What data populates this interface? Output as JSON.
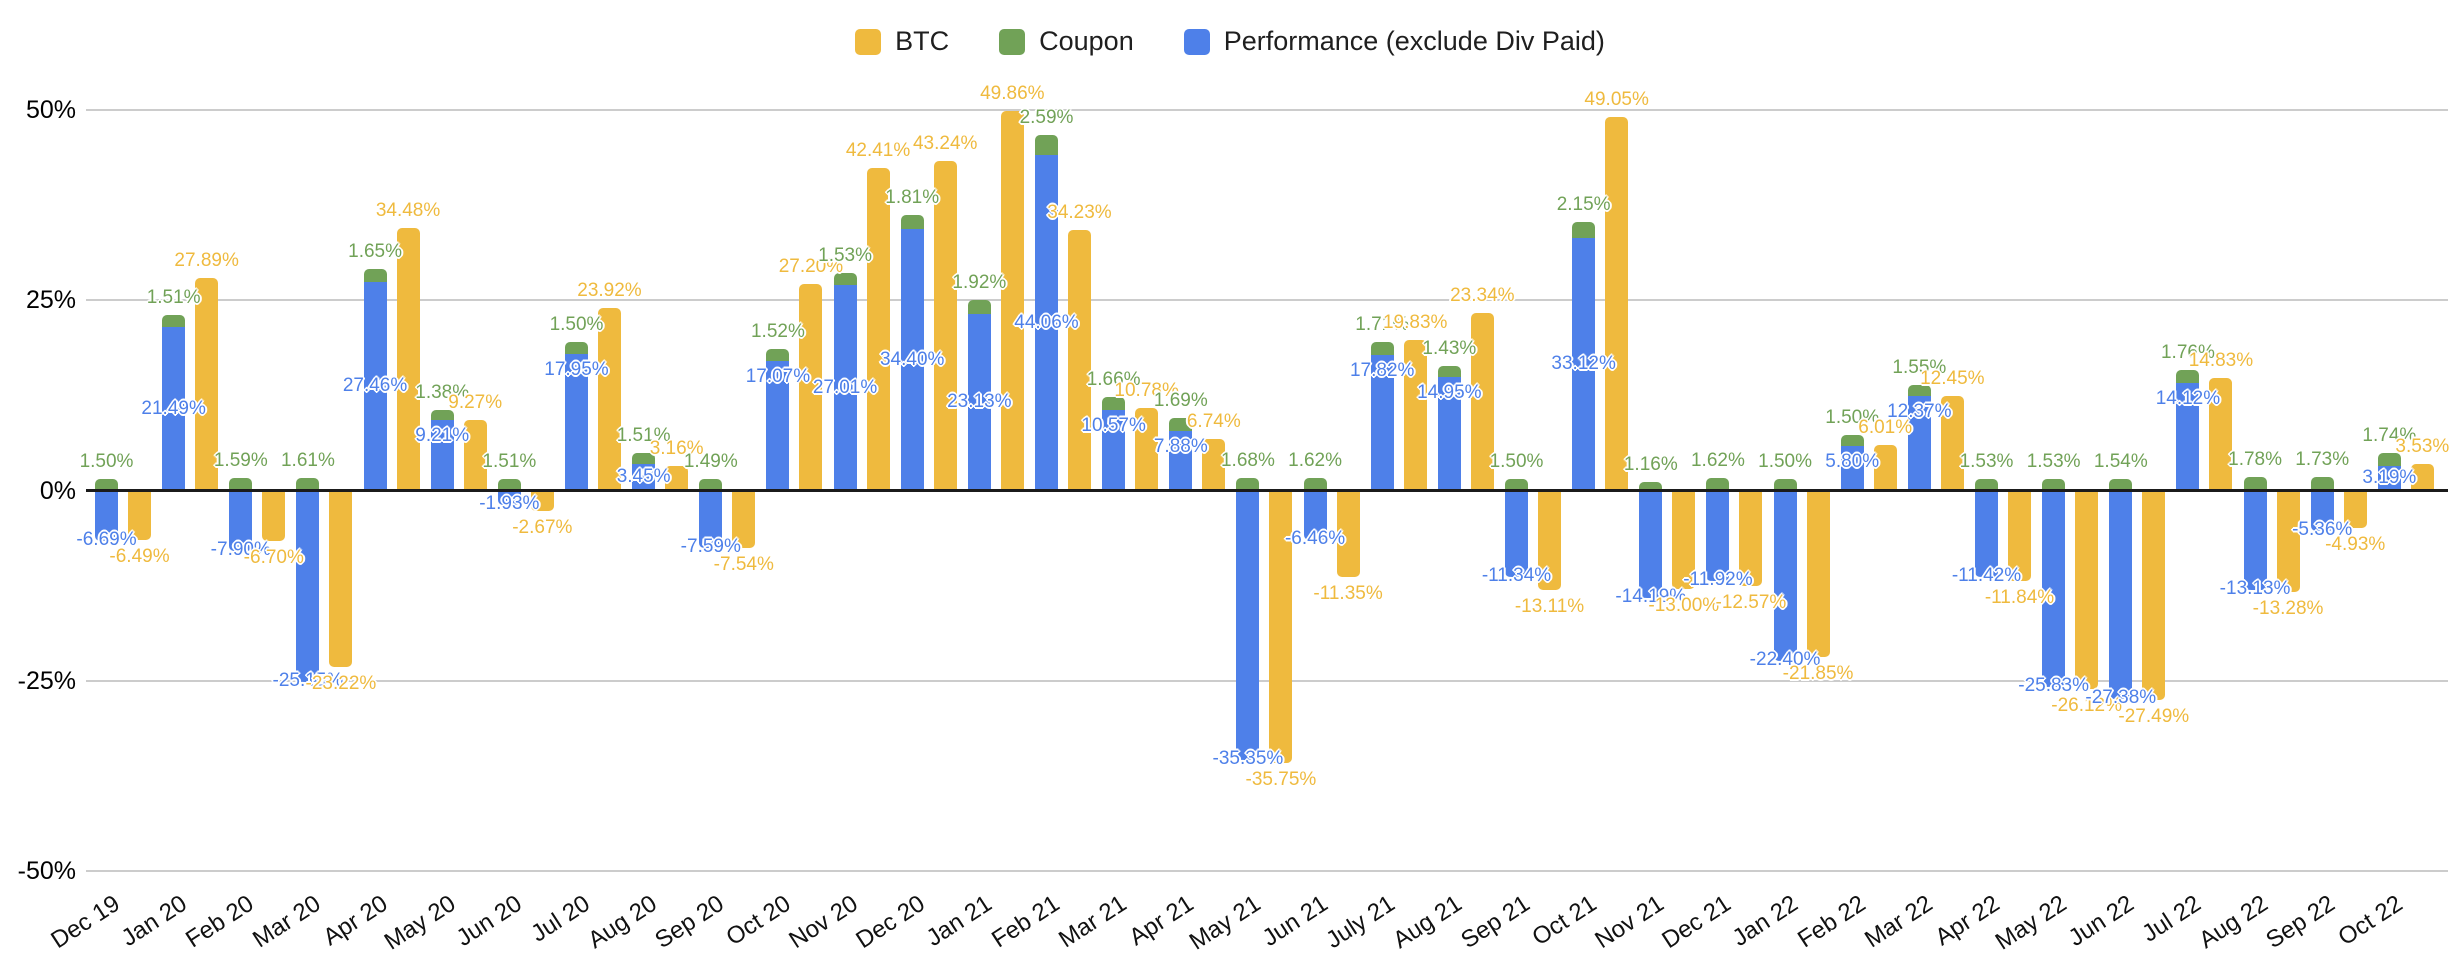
{
  "chart_data": {
    "type": "bar",
    "title": "",
    "legend_position": "top",
    "grid": true,
    "ylim": [
      -50,
      50
    ],
    "y_ticks": [
      "50%",
      "25%",
      "0%",
      "-25%",
      "-50%"
    ],
    "y_tick_values": [
      50,
      25,
      0,
      -25,
      -50
    ],
    "categories": [
      "Dec 19",
      "Jan 20",
      "Feb 20",
      "Mar 20",
      "Apr 20",
      "May 20",
      "Jun 20",
      "Jul 20",
      "Aug 20",
      "Sep 20",
      "Oct 20",
      "Nov 20",
      "Dec 20",
      "Jan 21",
      "Feb 21",
      "Mar 21",
      "Apr 21",
      "May 21",
      "Jun 21",
      "July 21",
      "Aug 21",
      "Sep 21",
      "Oct 21",
      "Nov 21",
      "Dec 21",
      "Jan 22",
      "Feb 22",
      "Mar 22",
      "Apr 22",
      "May 22",
      "Jun 22",
      "Jul 22",
      "Aug 22",
      "Sep 22",
      "Oct 22"
    ],
    "series": [
      {
        "name": "BTC",
        "color": "#EFBA3E",
        "values": [
          -6.49,
          27.89,
          -6.7,
          -23.22,
          34.48,
          9.27,
          -2.67,
          23.92,
          3.16,
          -7.54,
          27.2,
          42.41,
          43.24,
          49.86,
          34.23,
          10.78,
          6.74,
          -35.75,
          -11.35,
          19.83,
          23.34,
          -13.11,
          49.05,
          -13.0,
          -12.57,
          -21.85,
          6.01,
          12.45,
          -11.84,
          -26.12,
          -27.49,
          14.83,
          -13.28,
          -4.93,
          3.53
        ]
      },
      {
        "name": "Coupon",
        "color": "#71A257",
        "values": [
          1.5,
          1.51,
          1.59,
          1.61,
          1.65,
          1.38,
          1.51,
          1.5,
          1.51,
          1.49,
          1.52,
          1.53,
          1.81,
          1.92,
          2.59,
          1.66,
          1.69,
          1.68,
          1.62,
          1.71,
          1.43,
          1.5,
          2.15,
          1.16,
          1.62,
          1.5,
          1.5,
          1.55,
          1.53,
          1.53,
          1.54,
          1.76,
          1.78,
          1.73,
          1.74
        ]
      },
      {
        "name": "Performance (exclude Div Paid)",
        "color": "#4E80E9",
        "values": [
          -6.69,
          21.49,
          -7.9,
          -25.15,
          27.46,
          9.21,
          -1.93,
          17.95,
          3.45,
          -7.59,
          17.07,
          27.01,
          34.4,
          23.13,
          44.06,
          10.57,
          7.88,
          -35.35,
          -6.46,
          17.82,
          14.95,
          -11.34,
          33.12,
          -14.19,
          -11.92,
          -22.4,
          5.8,
          12.37,
          -11.42,
          -25.83,
          -27.38,
          14.12,
          -13.13,
          -5.36,
          3.19
        ]
      }
    ],
    "label_format": "0.00%",
    "stacking_note": "Coupon is stacked on top of Performance in one column; BTC is a separate column per month"
  },
  "colors": {
    "gridline": "#cccccc",
    "zero_axis": "#1b1b1b",
    "background": "#ffffff"
  }
}
